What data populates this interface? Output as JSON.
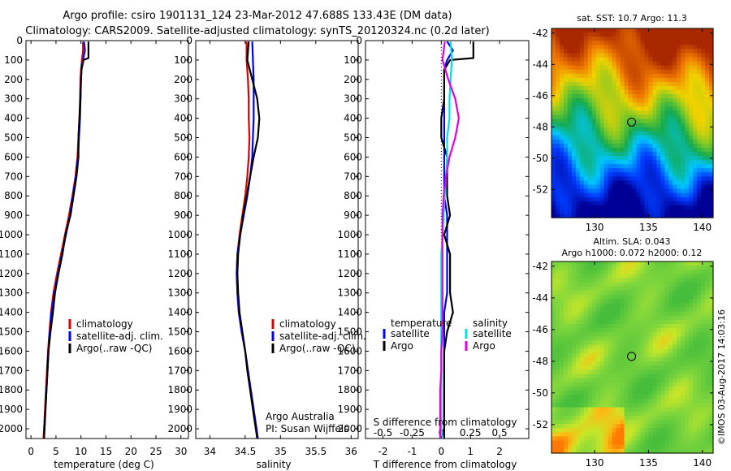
{
  "title_lines": [
    "Argo profile: csiro 1901131_124 23-Mar-2012 47.688S 133.43E (DM data)",
    "Climatology: CARS2009. Satellite-adjusted climatology: synTS_20120324.nc (0.2d later)"
  ],
  "colors": {
    "climatology": "#e00000",
    "satellite": "#0000ff",
    "argo": "#000000",
    "satellite_salinity": "#00e0e0",
    "argo_salinity": "#e000e0"
  },
  "depth_axis": {
    "ticks": [
      "0",
      "100",
      "200",
      "300",
      "400",
      "500",
      "600",
      "700",
      "800",
      "900",
      "1000",
      "1100",
      "1200",
      "1300",
      "1400",
      "1500",
      "1600",
      "1700",
      "1800",
      "1900",
      "2000"
    ],
    "range": [
      0,
      2050
    ]
  },
  "chart_data": [
    {
      "type": "line",
      "xlabel": "temperature (deg C)",
      "ylabel": "",
      "xlim": [
        -1,
        31.5
      ],
      "ylim": [
        0,
        2050
      ],
      "xticks": [
        "0",
        "5",
        "10",
        "15",
        "20",
        "25",
        "30"
      ],
      "legend": [
        "climatology",
        "satellite-adj. clim.",
        "Argo(..raw -QC)"
      ],
      "series": [
        {
          "name": "climatology",
          "color": "#e00000",
          "points": [
            [
              10.4,
              5
            ],
            [
              10.4,
              50
            ],
            [
              10.2,
              100
            ],
            [
              10.0,
              150
            ],
            [
              9.9,
              200
            ],
            [
              9.8,
              300
            ],
            [
              9.7,
              400
            ],
            [
              9.5,
              500
            ],
            [
              9.3,
              600
            ],
            [
              8.9,
              700
            ],
            [
              8.3,
              800
            ],
            [
              7.6,
              900
            ],
            [
              6.8,
              1000
            ],
            [
              6.0,
              1100
            ],
            [
              5.2,
              1200
            ],
            [
              4.5,
              1300
            ],
            [
              4.0,
              1400
            ],
            [
              3.7,
              1500
            ],
            [
              3.4,
              1600
            ],
            [
              3.2,
              1700
            ],
            [
              3.0,
              1800
            ],
            [
              2.8,
              1900
            ],
            [
              2.6,
              2000
            ],
            [
              2.5,
              2050
            ]
          ]
        },
        {
          "name": "satellite-adj. clim.",
          "color": "#0000ff",
          "points": [
            [
              10.6,
              5
            ],
            [
              10.8,
              50
            ],
            [
              10.4,
              100
            ],
            [
              10.1,
              150
            ],
            [
              10.0,
              200
            ],
            [
              9.9,
              300
            ],
            [
              9.8,
              400
            ],
            [
              9.6,
              500
            ],
            [
              9.4,
              600
            ],
            [
              9.0,
              700
            ],
            [
              8.4,
              800
            ],
            [
              7.8,
              900
            ],
            [
              7.0,
              1000
            ],
            [
              6.2,
              1100
            ],
            [
              5.4,
              1200
            ],
            [
              4.7,
              1300
            ],
            [
              4.1,
              1400
            ],
            [
              3.8,
              1500
            ],
            [
              3.5,
              1600
            ],
            [
              3.3,
              1700
            ],
            [
              3.1,
              1800
            ],
            [
              2.9,
              1900
            ],
            [
              2.7,
              2000
            ],
            [
              2.6,
              2050
            ]
          ]
        },
        {
          "name": "Argo(..raw -QC)",
          "color": "#000000",
          "points": [
            [
              11.5,
              5
            ],
            [
              11.5,
              90
            ],
            [
              10.5,
              100
            ],
            [
              10.1,
              150
            ],
            [
              10.0,
              200
            ],
            [
              9.9,
              300
            ],
            [
              9.7,
              400
            ],
            [
              9.5,
              500
            ],
            [
              9.5,
              600
            ],
            [
              9.1,
              700
            ],
            [
              8.5,
              800
            ],
            [
              7.9,
              900
            ],
            [
              6.9,
              1000
            ],
            [
              6.3,
              1100
            ],
            [
              5.5,
              1200
            ],
            [
              4.8,
              1300
            ],
            [
              4.4,
              1400
            ],
            [
              3.9,
              1500
            ],
            [
              3.5,
              1600
            ],
            [
              3.3,
              1700
            ],
            [
              3.1,
              1800
            ],
            [
              2.9,
              1900
            ],
            [
              2.7,
              2000
            ],
            [
              2.6,
              2050
            ]
          ]
        }
      ]
    },
    {
      "type": "line",
      "xlabel": "salinity",
      "ylabel": "",
      "xlim": [
        33.8,
        36.1
      ],
      "ylim": [
        0,
        2050
      ],
      "xticks": [
        "34",
        "34.5",
        "35",
        "35.5",
        "36"
      ],
      "legend": [
        "climatology",
        "satellite-adj. clim.",
        "Argo(..raw -QC)"
      ],
      "annotation": [
        "Argo Australia",
        "PI: Susan Wijffels"
      ],
      "series": [
        {
          "name": "climatology",
          "color": "#e00000",
          "points": [
            [
              34.52,
              5
            ],
            [
              34.52,
              100
            ],
            [
              34.54,
              200
            ],
            [
              34.55,
              300
            ],
            [
              34.55,
              400
            ],
            [
              34.56,
              500
            ],
            [
              34.55,
              600
            ],
            [
              34.53,
              700
            ],
            [
              34.5,
              800
            ],
            [
              34.46,
              900
            ],
            [
              34.42,
              1000
            ],
            [
              34.39,
              1100
            ],
            [
              34.38,
              1200
            ],
            [
              34.39,
              1300
            ],
            [
              34.41,
              1400
            ],
            [
              34.45,
              1500
            ],
            [
              34.5,
              1600
            ],
            [
              34.54,
              1700
            ],
            [
              34.58,
              1800
            ],
            [
              34.62,
              1900
            ],
            [
              34.66,
              2000
            ],
            [
              34.67,
              2050
            ]
          ]
        },
        {
          "name": "satellite-adj. clim.",
          "color": "#0000ff",
          "points": [
            [
              34.6,
              5
            ],
            [
              34.61,
              100
            ],
            [
              34.62,
              200
            ],
            [
              34.62,
              300
            ],
            [
              34.62,
              400
            ],
            [
              34.61,
              500
            ],
            [
              34.6,
              600
            ],
            [
              34.57,
              700
            ],
            [
              34.53,
              800
            ],
            [
              34.48,
              900
            ],
            [
              34.43,
              1000
            ],
            [
              34.39,
              1100
            ],
            [
              34.38,
              1200
            ],
            [
              34.39,
              1300
            ],
            [
              34.41,
              1400
            ],
            [
              34.45,
              1500
            ],
            [
              34.5,
              1600
            ],
            [
              34.54,
              1700
            ],
            [
              34.58,
              1800
            ],
            [
              34.62,
              1900
            ],
            [
              34.66,
              2000
            ],
            [
              34.68,
              2050
            ]
          ]
        },
        {
          "name": "Argo(..raw -QC)",
          "color": "#000000",
          "points": [
            [
              34.55,
              5
            ],
            [
              34.53,
              100
            ],
            [
              34.6,
              200
            ],
            [
              34.67,
              300
            ],
            [
              34.7,
              400
            ],
            [
              34.68,
              500
            ],
            [
              34.62,
              600
            ],
            [
              34.57,
              700
            ],
            [
              34.52,
              800
            ],
            [
              34.47,
              900
            ],
            [
              34.43,
              1000
            ],
            [
              34.4,
              1100
            ],
            [
              34.39,
              1200
            ],
            [
              34.4,
              1300
            ],
            [
              34.42,
              1400
            ],
            [
              34.46,
              1500
            ],
            [
              34.5,
              1600
            ],
            [
              34.53,
              1700
            ],
            [
              34.57,
              1800
            ],
            [
              34.61,
              1900
            ],
            [
              34.65,
              2000
            ],
            [
              34.67,
              2050
            ]
          ]
        }
      ]
    },
    {
      "type": "line",
      "xlabel": "T difference from climatology",
      "top_label": "S difference from climatology",
      "xlim": [
        -2.6,
        3.0
      ],
      "ylim": [
        0,
        2050
      ],
      "xticks": [
        "-2",
        "-1",
        "0",
        "1",
        "2"
      ],
      "top_ticks": [
        "-0.5",
        "-0.25",
        "0",
        "0.25",
        "0.5"
      ],
      "legend_left": [
        "temperature",
        "satellite",
        "Argo"
      ],
      "legend_right": [
        "salinity",
        "satellite",
        "Argo"
      ],
      "series": [
        {
          "name": "temperature satellite",
          "color": "#0000ff",
          "points": [
            [
              0.2,
              5
            ],
            [
              0.4,
              50
            ],
            [
              0.2,
              100
            ],
            [
              0.1,
              150
            ],
            [
              0.1,
              200
            ],
            [
              0.1,
              300
            ],
            [
              0.1,
              400
            ],
            [
              0.1,
              500
            ],
            [
              0.1,
              600
            ],
            [
              0.1,
              700
            ],
            [
              0.1,
              800
            ],
            [
              0.2,
              900
            ],
            [
              0.2,
              1000
            ],
            [
              0.2,
              1100
            ],
            [
              0.2,
              1200
            ],
            [
              0.2,
              1300
            ],
            [
              0.1,
              1400
            ],
            [
              0.1,
              1500
            ],
            [
              0.1,
              1600
            ],
            [
              0.1,
              1700
            ],
            [
              0.1,
              1800
            ],
            [
              0.1,
              1900
            ],
            [
              0.1,
              2000
            ],
            [
              0.1,
              2050
            ]
          ]
        },
        {
          "name": "temperature Argo",
          "color": "#000000",
          "points": [
            [
              1.1,
              5
            ],
            [
              1.1,
              90
            ],
            [
              0.3,
              100
            ],
            [
              0.1,
              150
            ],
            [
              0.1,
              200
            ],
            [
              0.1,
              300
            ],
            [
              0.0,
              400
            ],
            [
              0.0,
              500
            ],
            [
              0.2,
              600
            ],
            [
              0.2,
              700
            ],
            [
              0.2,
              800
            ],
            [
              0.3,
              900
            ],
            [
              0.1,
              1000
            ],
            [
              0.3,
              1100
            ],
            [
              0.3,
              1200
            ],
            [
              0.3,
              1300
            ],
            [
              0.4,
              1400
            ],
            [
              0.2,
              1500
            ],
            [
              0.1,
              1600
            ],
            [
              0.1,
              1700
            ],
            [
              0.1,
              1800
            ],
            [
              0.1,
              1900
            ],
            [
              0.1,
              2000
            ],
            [
              0.1,
              2050
            ]
          ]
        },
        {
          "name": "salinity satellite",
          "color": "#00e0e0",
          "points": [
            [
              0.08,
              5
            ],
            [
              0.09,
              100
            ],
            [
              0.08,
              200
            ],
            [
              0.07,
              300
            ],
            [
              0.07,
              400
            ],
            [
              0.05,
              500
            ],
            [
              0.05,
              600
            ],
            [
              0.04,
              700
            ],
            [
              0.03,
              800
            ],
            [
              0.02,
              900
            ],
            [
              0.01,
              1000
            ],
            [
              0.0,
              1100
            ],
            [
              0.0,
              1200
            ],
            [
              0.0,
              1300
            ],
            [
              0.0,
              1400
            ],
            [
              0.0,
              1500
            ],
            [
              0.0,
              1600
            ],
            [
              0.0,
              1700
            ],
            [
              0.0,
              1800
            ],
            [
              0.0,
              1900
            ],
            [
              0.0,
              2000
            ],
            [
              0.01,
              2050
            ]
          ]
        },
        {
          "name": "salinity Argo",
          "color": "#e000e0",
          "points": [
            [
              0.03,
              5
            ],
            [
              0.01,
              100
            ],
            [
              0.06,
              200
            ],
            [
              0.12,
              300
            ],
            [
              0.15,
              400
            ],
            [
              0.12,
              500
            ],
            [
              0.07,
              600
            ],
            [
              0.04,
              700
            ],
            [
              0.02,
              800
            ],
            [
              0.01,
              900
            ],
            [
              0.01,
              1000
            ],
            [
              0.01,
              1100
            ],
            [
              0.01,
              1200
            ],
            [
              0.01,
              1300
            ],
            [
              0.01,
              1400
            ],
            [
              0.01,
              1500
            ],
            [
              0.0,
              1600
            ],
            [
              0.0,
              1700
            ],
            [
              -0.01,
              1800
            ],
            [
              -0.01,
              1900
            ],
            [
              -0.01,
              2000
            ],
            [
              -0.01,
              2050
            ]
          ]
        }
      ]
    },
    {
      "type": "heatmap",
      "title": "sat. SST: 10.7  Argo: 11.3",
      "xlim": [
        126,
        141
      ],
      "ylim": [
        -53.8,
        -41.7
      ],
      "xticks": [
        "130",
        "135",
        "140"
      ],
      "yticks": [
        "-42",
        "-44",
        "-46",
        "-48",
        "-50",
        "-52"
      ],
      "marker": {
        "lon": 133.43,
        "lat": -47.69
      }
    },
    {
      "type": "heatmap",
      "title_lines": [
        "Altim. SLA: 0.043",
        "Argo h1000: 0.072 h2000: 0.12"
      ],
      "xlim": [
        126,
        141
      ],
      "ylim": [
        -53.8,
        -41.7
      ],
      "xticks": [
        "130",
        "135",
        "140"
      ],
      "yticks": [
        "-42",
        "-44",
        "-46",
        "-48",
        "-50",
        "-52"
      ],
      "marker": {
        "lon": 133.43,
        "lat": -47.69
      }
    }
  ],
  "credit": "©IMOS 03-Aug-2017 14:03:16"
}
